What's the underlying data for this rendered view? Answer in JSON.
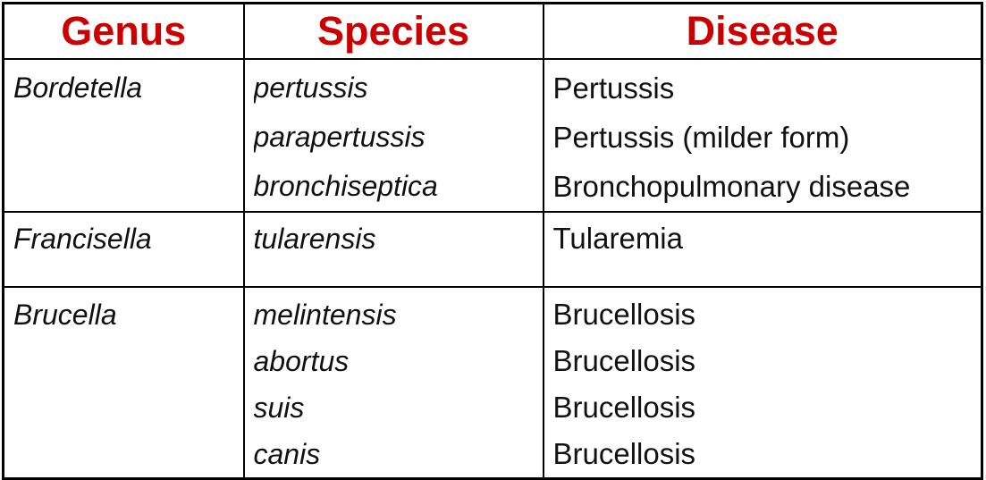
{
  "table": {
    "headers": [
      {
        "label": "Genus"
      },
      {
        "label": "Species"
      },
      {
        "label": "Disease"
      }
    ],
    "rows": [
      {
        "genus": "Bordetella",
        "entries": [
          {
            "species": "pertussis",
            "disease": "Pertussis"
          },
          {
            "species": "parapertussis",
            "disease": "Pertussis (milder form)"
          },
          {
            "species": "bronchiseptica",
            "disease": "Bronchopulmonary disease"
          }
        ]
      },
      {
        "genus": "Francisella",
        "entries": [
          {
            "species": "tularensis",
            "disease": "Tularemia"
          }
        ]
      },
      {
        "genus": "Brucella",
        "entries": [
          {
            "species": "melintensis",
            "disease": "Brucellosis"
          },
          {
            "species": "abortus",
            "disease": "Brucellosis"
          },
          {
            "species": "suis",
            "disease": "Brucellosis"
          },
          {
            "species": "canis",
            "disease": "Brucellosis"
          }
        ]
      }
    ],
    "colors": {
      "header_text": "#cc0000",
      "body_text": "#111111",
      "border": "#000000",
      "background": "#ffffff"
    }
  }
}
